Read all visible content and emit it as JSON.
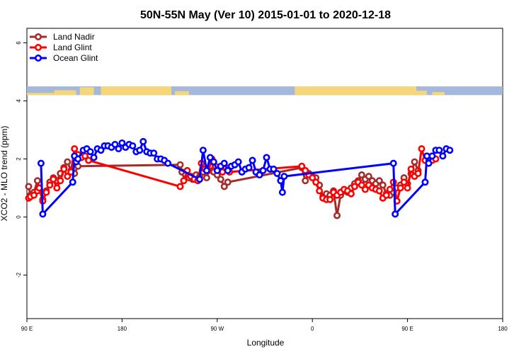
{
  "chart_data": {
    "type": "line",
    "title": "50N-55N May (Ver 10)   2015-01-01 to 2020-12-18",
    "xlabel": "Longitude",
    "ylabel": "XCO2 - MLO trend (ppm)",
    "xlim": [
      -90,
      180
    ],
    "ylim": [
      -3.5,
      6.5
    ],
    "x_ticks": [
      {
        "value": -90,
        "label": "90 E"
      },
      {
        "value": -36,
        "label": "180"
      },
      {
        "value": 18,
        "label": "90 W"
      },
      {
        "value": 72,
        "label": "0"
      },
      {
        "value": 126,
        "label": "90 E"
      },
      {
        "value": 180,
        "label": "180"
      }
    ],
    "y_ticks": [
      -2,
      0,
      2,
      4,
      6
    ],
    "grid": false,
    "legend_position": "top-left",
    "land_ocean_band": {
      "ymin": 4.2,
      "ymax": 4.5,
      "land_color": "#F5D67B",
      "ocean_color": "#A4B8DB"
    },
    "series": [
      {
        "name": "Land Nadir",
        "color": "#A52A2A",
        "points": [
          [
            -89,
            1.05
          ],
          [
            -88,
            0.75
          ],
          [
            -86,
            0.85
          ],
          [
            -84,
            1.25
          ],
          [
            -83,
            1.0
          ],
          [
            -81,
            0.6
          ],
          [
            -79,
            0.9
          ],
          [
            -77,
            1.2
          ],
          [
            -75,
            1.35
          ],
          [
            -73,
            1.25
          ],
          [
            -71,
            1.5
          ],
          [
            -69,
            1.7
          ],
          [
            -67,
            1.9
          ],
          [
            -65,
            1.6
          ],
          [
            -63,
            1.5
          ],
          [
            -61,
            1.75
          ],
          [
            -3,
            1.8
          ],
          [
            -2,
            1.55
          ],
          [
            0,
            1.45
          ],
          [
            2,
            1.35
          ],
          [
            4,
            1.3
          ],
          [
            6,
            1.45
          ],
          [
            8,
            1.4
          ],
          [
            10,
            1.55
          ],
          [
            12,
            1.35
          ],
          [
            14,
            1.75
          ],
          [
            16,
            1.55
          ],
          [
            18,
            1.45
          ],
          [
            20,
            1.3
          ],
          [
            22,
            1.05
          ],
          [
            24,
            1.2
          ],
          [
            66,
            1.7
          ],
          [
            68,
            1.25
          ],
          [
            70,
            1.5
          ],
          [
            72,
            1.4
          ],
          [
            74,
            1.35
          ],
          [
            76,
            1.1
          ],
          [
            78,
            0.7
          ],
          [
            80,
            0.8
          ],
          [
            82,
            0.75
          ],
          [
            84,
            0.9
          ],
          [
            86,
            0.05
          ],
          [
            88,
            0.75
          ],
          [
            90,
            0.9
          ],
          [
            92,
            0.85
          ],
          [
            94,
            1.0
          ],
          [
            96,
            1.15
          ],
          [
            98,
            1.25
          ],
          [
            100,
            1.45
          ],
          [
            102,
            1.3
          ],
          [
            104,
            1.4
          ],
          [
            106,
            1.25
          ],
          [
            108,
            1.15
          ],
          [
            110,
            1.25
          ],
          [
            112,
            1.1
          ],
          [
            114,
            0.8
          ],
          [
            116,
            0.75
          ],
          [
            118,
            0.85
          ],
          [
            120,
            1.0
          ],
          [
            122,
            1.1
          ],
          [
            124,
            1.35
          ],
          [
            126,
            1.15
          ],
          [
            128,
            1.5
          ],
          [
            130,
            1.9
          ],
          [
            132,
            1.6
          ]
        ]
      },
      {
        "name": "Land Glint",
        "color": "#FF0000",
        "points": [
          [
            -89,
            0.65
          ],
          [
            -88,
            0.7
          ],
          [
            -86,
            0.75
          ],
          [
            -84,
            0.9
          ],
          [
            -83,
            1.0
          ],
          [
            -81,
            0.55
          ],
          [
            -79,
            0.85
          ],
          [
            -77,
            1.1
          ],
          [
            -75,
            1.3
          ],
          [
            -73,
            1.0
          ],
          [
            -71,
            1.25
          ],
          [
            -69,
            1.65
          ],
          [
            -67,
            1.4
          ],
          [
            -65,
            1.55
          ],
          [
            -63,
            2.35
          ],
          [
            -61,
            2.15
          ],
          [
            -59,
            2.05
          ],
          [
            -57,
            2.1
          ],
          [
            -55,
            1.95
          ],
          [
            -3,
            1.05
          ],
          [
            -1,
            1.25
          ],
          [
            1,
            1.6
          ],
          [
            3,
            1.4
          ],
          [
            5,
            1.3
          ],
          [
            7,
            1.25
          ],
          [
            9,
            1.85
          ],
          [
            11,
            1.65
          ],
          [
            13,
            1.6
          ],
          [
            15,
            2.0
          ],
          [
            17,
            1.75
          ],
          [
            19,
            1.6
          ],
          [
            21,
            1.55
          ],
          [
            23,
            1.7
          ],
          [
            25,
            1.55
          ],
          [
            66,
            1.75
          ],
          [
            68,
            1.6
          ],
          [
            70,
            1.45
          ],
          [
            72,
            1.35
          ],
          [
            74,
            1.2
          ],
          [
            76,
            0.9
          ],
          [
            78,
            0.65
          ],
          [
            80,
            0.6
          ],
          [
            82,
            0.6
          ],
          [
            84,
            0.85
          ],
          [
            86,
            0.75
          ],
          [
            88,
            0.85
          ],
          [
            90,
            0.95
          ],
          [
            92,
            0.9
          ],
          [
            94,
            0.8
          ],
          [
            96,
            1.05
          ],
          [
            98,
            1.2
          ],
          [
            100,
            1.1
          ],
          [
            102,
            0.95
          ],
          [
            104,
            1.1
          ],
          [
            106,
            1.0
          ],
          [
            108,
            0.95
          ],
          [
            110,
            0.9
          ],
          [
            112,
            0.65
          ],
          [
            114,
            0.75
          ],
          [
            116,
            0.95
          ],
          [
            118,
            1.2
          ],
          [
            120,
            0.55
          ],
          [
            122,
            1.0
          ],
          [
            124,
            1.2
          ],
          [
            126,
            1.0
          ],
          [
            128,
            1.65
          ],
          [
            130,
            1.4
          ],
          [
            132,
            1.5
          ],
          [
            134,
            2.35
          ],
          [
            136,
            1.95
          ],
          [
            138,
            1.85
          ],
          [
            140,
            1.95
          ],
          [
            142,
            2.0
          ]
        ]
      },
      {
        "name": "Ocean Glint",
        "color": "#0000FF",
        "points": [
          [
            -82,
            1.85
          ],
          [
            -81,
            0.1
          ],
          [
            -64,
            1.2
          ],
          [
            -63,
            2.1
          ],
          [
            -62,
            1.9
          ],
          [
            -61,
            2.0
          ],
          [
            -58,
            2.3
          ],
          [
            -56,
            2.35
          ],
          [
            -54,
            2.25
          ],
          [
            -52,
            2.05
          ],
          [
            -50,
            2.35
          ],
          [
            -48,
            2.3
          ],
          [
            -46,
            2.45
          ],
          [
            -44,
            2.45
          ],
          [
            -42,
            2.4
          ],
          [
            -40,
            2.5
          ],
          [
            -38,
            2.35
          ],
          [
            -36,
            2.55
          ],
          [
            -34,
            2.4
          ],
          [
            -32,
            2.5
          ],
          [
            -30,
            2.45
          ],
          [
            -28,
            2.25
          ],
          [
            -26,
            2.3
          ],
          [
            -24,
            2.6
          ],
          [
            -22,
            2.25
          ],
          [
            -20,
            2.2
          ],
          [
            -18,
            2.2
          ],
          [
            -16,
            2.0
          ],
          [
            -14,
            2.0
          ],
          [
            -12,
            1.95
          ],
          [
            -10,
            1.85
          ],
          [
            8,
            1.3
          ],
          [
            10,
            2.3
          ],
          [
            12,
            1.6
          ],
          [
            14,
            2.05
          ],
          [
            16,
            1.9
          ],
          [
            18,
            1.6
          ],
          [
            20,
            1.75
          ],
          [
            22,
            1.85
          ],
          [
            24,
            1.6
          ],
          [
            26,
            1.75
          ],
          [
            28,
            1.8
          ],
          [
            30,
            1.9
          ],
          [
            32,
            1.55
          ],
          [
            34,
            1.65
          ],
          [
            36,
            1.7
          ],
          [
            38,
            1.95
          ],
          [
            40,
            1.55
          ],
          [
            42,
            1.45
          ],
          [
            44,
            1.6
          ],
          [
            46,
            2.05
          ],
          [
            48,
            1.65
          ],
          [
            50,
            1.65
          ],
          [
            52,
            1.5
          ],
          [
            54,
            1.25
          ],
          [
            55,
            0.85
          ],
          [
            56,
            1.4
          ],
          [
            118,
            1.85
          ],
          [
            119,
            0.1
          ],
          [
            136,
            1.2
          ],
          [
            137,
            2.1
          ],
          [
            138,
            1.85
          ],
          [
            140,
            2.1
          ],
          [
            142,
            2.3
          ],
          [
            144,
            2.3
          ],
          [
            146,
            2.1
          ],
          [
            148,
            2.35
          ],
          [
            150,
            2.3
          ]
        ]
      }
    ]
  }
}
